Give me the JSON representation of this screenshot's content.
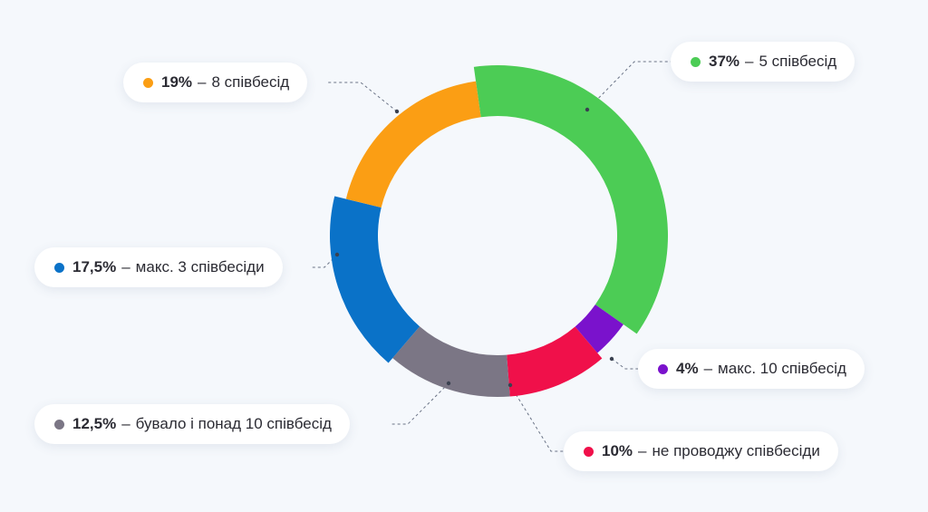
{
  "chart_data": {
    "type": "pie",
    "variant": "donut",
    "slices": [
      {
        "label": "5 співбесід",
        "percent_label": "37%",
        "value": 37,
        "color": "#4ccc55"
      },
      {
        "label": "макс. 10 співбесід",
        "percent_label": "4%",
        "value": 4,
        "color": "#7a12cc"
      },
      {
        "label": "не проводжу співбесіди",
        "percent_label": "10%",
        "value": 10,
        "color": "#f0104a"
      },
      {
        "label": "бувало і понад 10 співбесід",
        "percent_label": "12,5%",
        "value": 12.5,
        "color": "#7b7685"
      },
      {
        "label": "макс. 3 співбесіди",
        "percent_label": "17,5%",
        "value": 17.5,
        "color": "#0a72c8"
      },
      {
        "label": "8 співбесід",
        "percent_label": "19%",
        "value": 19,
        "color": "#fb9e14"
      }
    ]
  }
}
